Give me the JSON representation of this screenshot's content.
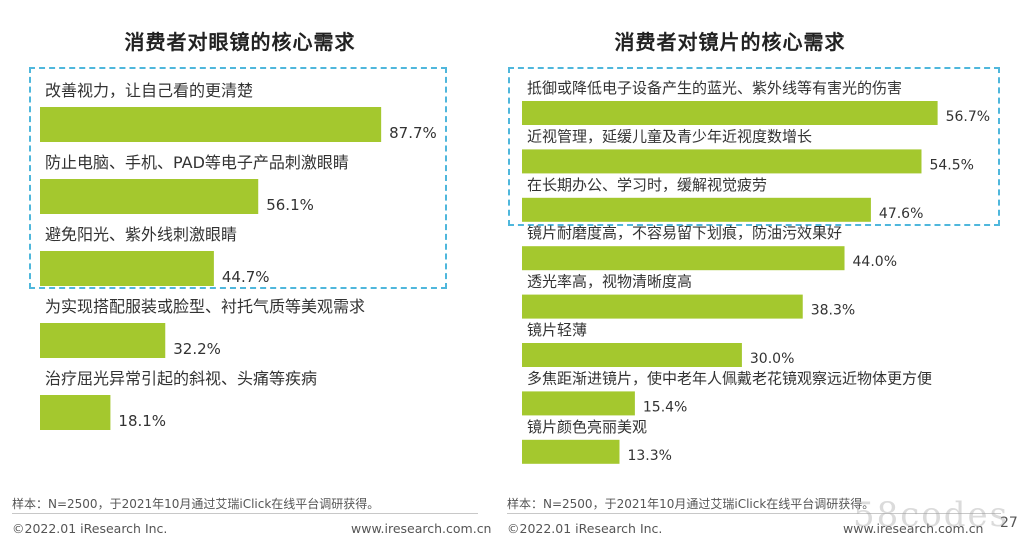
{
  "chart_data": [
    {
      "type": "bar",
      "orientation": "horizontal",
      "title": "消费者对眼镜的核心需求",
      "categories": [
        "改善视力，让自己看的更清楚",
        "防止电脑、手机、PAD等电子产品刺激眼睛",
        "避免阳光、紫外线刺激眼睛",
        "为实现搭配服装或脸型、衬托气质等美观需求",
        "治疗屈光异常引起的斜视、头痛等疾病"
      ],
      "values": [
        87.7,
        56.1,
        44.7,
        32.2,
        18.1
      ],
      "value_labels": [
        "87.7%",
        "56.1%",
        "44.7%",
        "32.2%",
        "18.1%"
      ],
      "highlighted_count": 3,
      "bar_color": "#a4c82e"
    },
    {
      "type": "bar",
      "orientation": "horizontal",
      "title": "消费者对镜片的核心需求",
      "categories": [
        "抵御或降低电子设备产生的蓝光、紫外线等有害光的伤害",
        "近视管理，延缓儿童及青少年近视度数增长",
        "在长期办公、学习时，缓解视觉疲劳",
        "镜片耐磨度高，不容易留下划痕，防油污效果好",
        "透光率高，视物清晰度高",
        "镜片轻薄",
        "多焦距渐进镜片，使中老年人佩戴老花镜观察远近物体更方便",
        "镜片颜色亮丽美观"
      ],
      "values": [
        56.7,
        54.5,
        47.6,
        44.0,
        38.3,
        30.0,
        15.4,
        13.3
      ],
      "value_labels": [
        "56.7%",
        "54.5%",
        "47.6%",
        "44.0%",
        "38.3%",
        "30.0%",
        "15.4%",
        "13.3%"
      ],
      "highlighted_count": 3,
      "bar_color": "#a4c82e"
    }
  ],
  "colors": {
    "bar": "#a4c82e",
    "highlight_border": "#4fb7dc"
  },
  "footnotes": {
    "left": "样本：N=2500，于2021年10月通过艾瑞iClick在线平台调研获得。",
    "right": "样本：N=2500，于2021年10月通过艾瑞iClick在线平台调研获得。"
  },
  "footer": {
    "left_copyright": "©2022.01 iResearch Inc.",
    "left_site": "www.iresearch.com.cn",
    "right_copyright": "©2022.01 iResearch Inc.",
    "right_site": "www.iresearch.com.cn"
  },
  "page_number": "27",
  "watermark": "58codes"
}
